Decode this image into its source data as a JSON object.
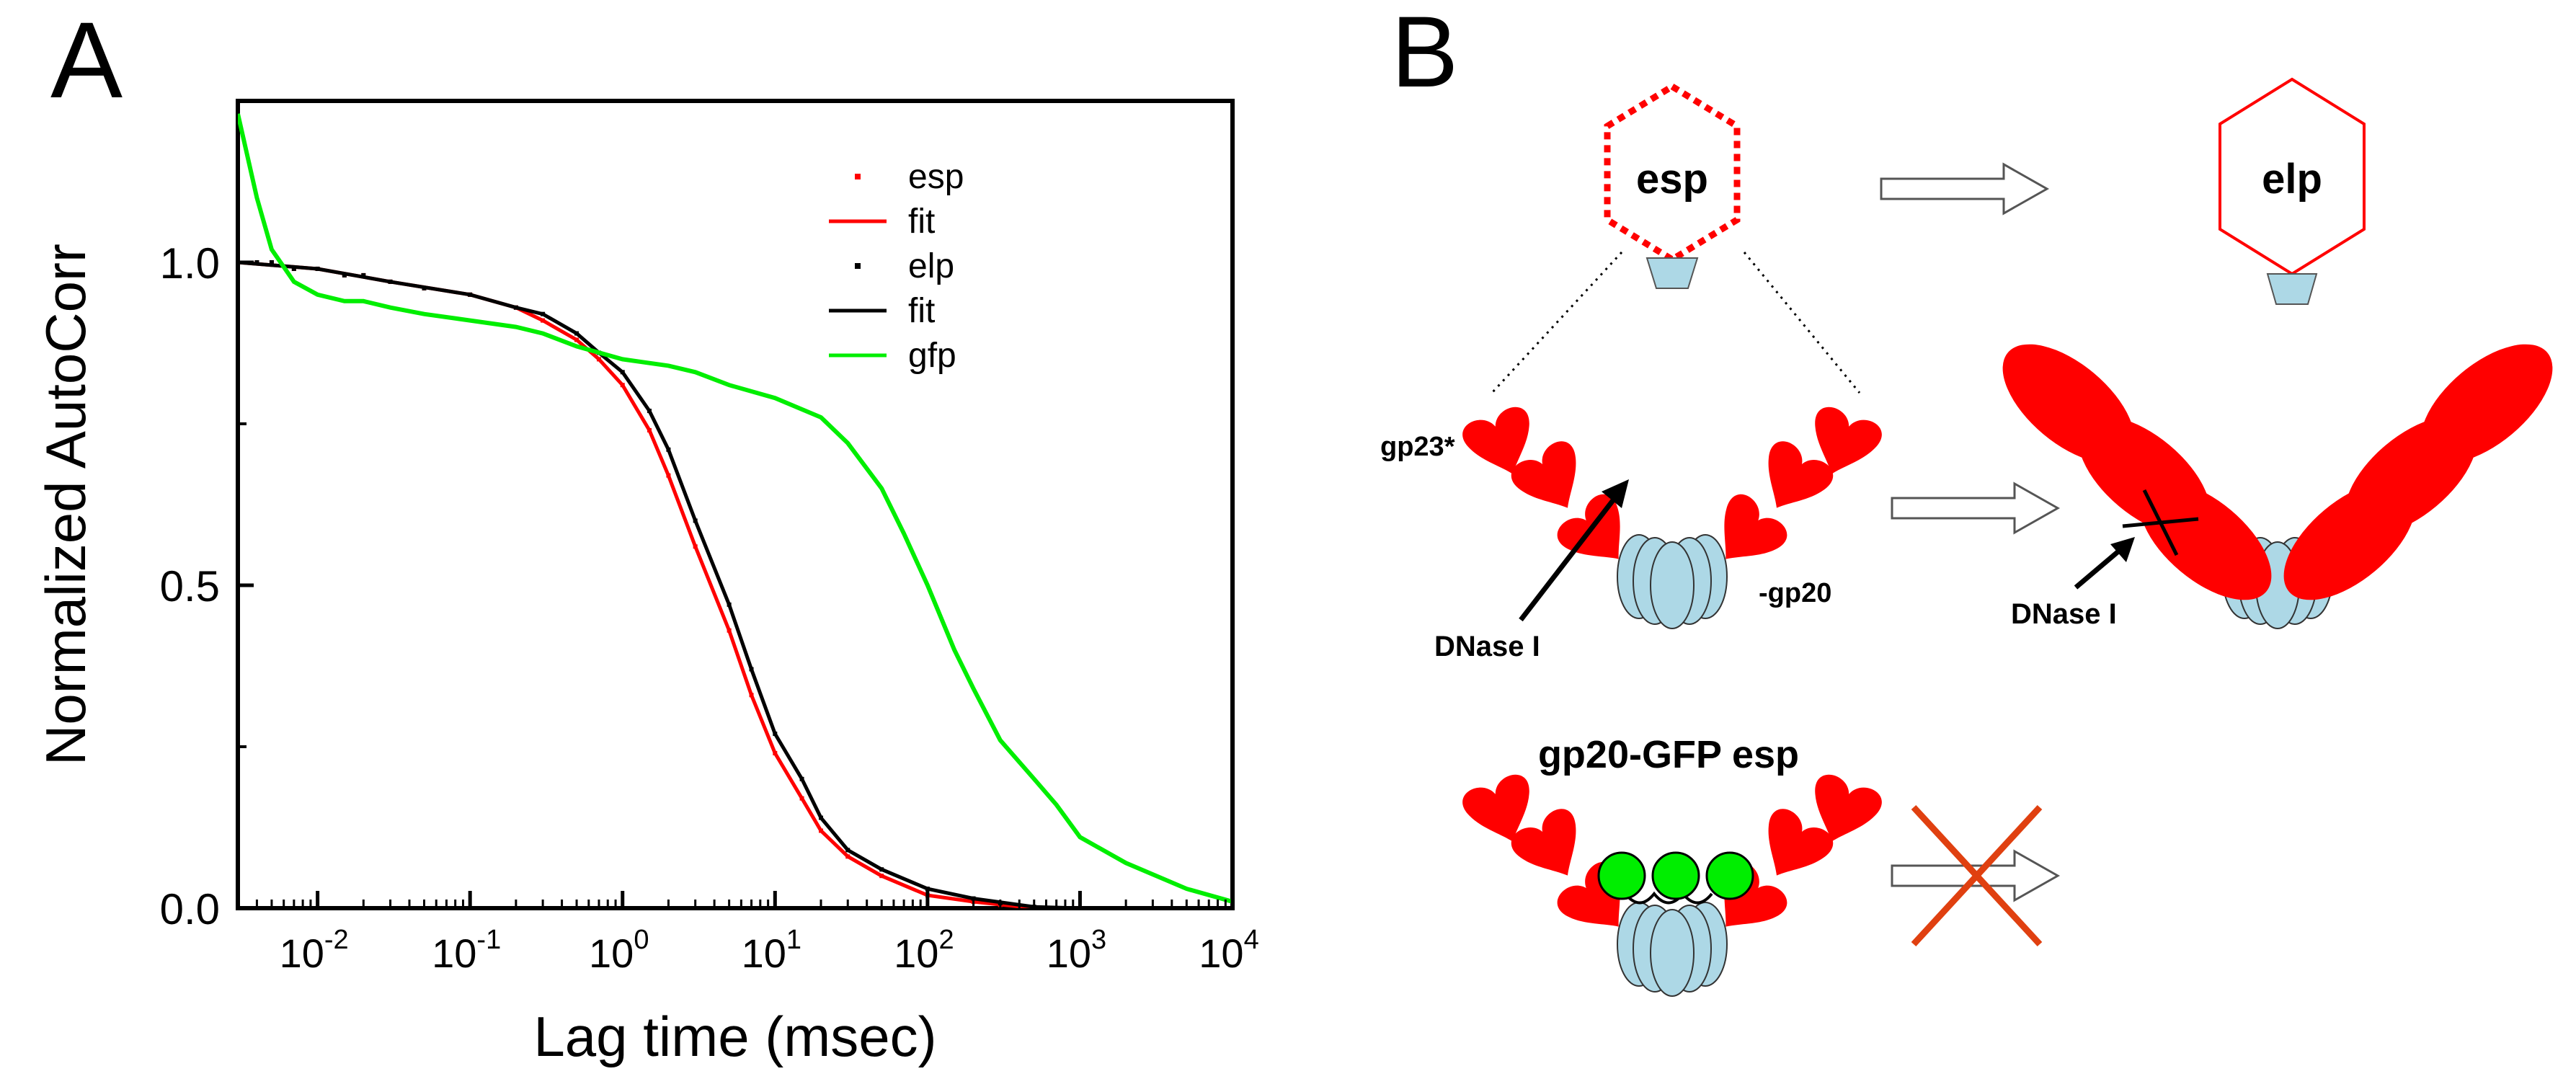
{
  "panel_a": {
    "letter": "A"
  },
  "panel_b": {
    "letter": "B",
    "esp_label": "esp",
    "elp_label": "elp",
    "gp23_label": "gp23*",
    "gp20_label": "-gp20",
    "dnase_left_label": "DNase I",
    "dnase_right_label": "DNase I",
    "gfp_esp_label": "gp20-GFP esp",
    "colors": {
      "capsid": "#ff0000",
      "portal": "#add8e6",
      "gfp": "#00ee00",
      "cross": "#e04010"
    },
    "icons": [
      "hexagon-capsid-icon",
      "portal-icon",
      "arrow-right-icon",
      "cross-icon",
      "heart-subunit-icon",
      "ellipse-subunit-icon"
    ]
  },
  "chart_data": {
    "type": "scatter",
    "xlabel": "Lag time (msec)",
    "ylabel": "Normalized AutoCorr",
    "xscale": "log",
    "xlim": [
      0.003,
      10000
    ],
    "ylim": [
      0.0,
      1.25
    ],
    "xticks": [
      0.01,
      0.1,
      1,
      10,
      100,
      1000,
      10000
    ],
    "xtick_labels": [
      {
        "base": "10",
        "exp": "-2"
      },
      {
        "base": "10",
        "exp": "-1"
      },
      {
        "base": "10",
        "exp": "0"
      },
      {
        "base": "10",
        "exp": "1"
      },
      {
        "base": "10",
        "exp": "2"
      },
      {
        "base": "10",
        "exp": "3"
      },
      {
        "base": "10",
        "exp": "4"
      }
    ],
    "yticks": [
      0.0,
      0.5,
      1.0
    ],
    "ytick_labels": [
      "0.0",
      "0.5",
      "1.0"
    ],
    "grid": false,
    "legend_position": "top-right",
    "series": [
      {
        "name": "esp",
        "style": "dots",
        "color": "#ff0000",
        "x": [
          0.003,
          0.004,
          0.005,
          0.007,
          0.01,
          0.015,
          0.02,
          0.03,
          0.05,
          0.1,
          0.2,
          0.3,
          0.5,
          0.7,
          1,
          1.5,
          2,
          3,
          5,
          7,
          10,
          15,
          20,
          30,
          50,
          100,
          200,
          300,
          500,
          1000
        ],
        "y": [
          1.0,
          1.0,
          1.0,
          0.99,
          0.99,
          0.98,
          0.98,
          0.97,
          0.96,
          0.95,
          0.93,
          0.91,
          0.88,
          0.85,
          0.81,
          0.74,
          0.67,
          0.56,
          0.43,
          0.33,
          0.24,
          0.17,
          0.12,
          0.08,
          0.05,
          0.02,
          0.01,
          0.005,
          0.0,
          0.0
        ]
      },
      {
        "name": "fit",
        "style": "line",
        "color": "#ff0000",
        "x": [
          0.003,
          0.01,
          0.03,
          0.1,
          0.2,
          0.3,
          0.5,
          0.7,
          1,
          1.5,
          2,
          3,
          5,
          7,
          10,
          15,
          20,
          30,
          50,
          100,
          200,
          500,
          1000
        ],
        "y": [
          1.0,
          0.99,
          0.97,
          0.95,
          0.93,
          0.91,
          0.88,
          0.85,
          0.81,
          0.74,
          0.67,
          0.56,
          0.43,
          0.33,
          0.24,
          0.17,
          0.12,
          0.08,
          0.05,
          0.02,
          0.01,
          0.0,
          0.0
        ]
      },
      {
        "name": "elp",
        "style": "dots",
        "color": "#000000",
        "x": [
          0.003,
          0.004,
          0.005,
          0.007,
          0.01,
          0.015,
          0.02,
          0.03,
          0.05,
          0.1,
          0.2,
          0.3,
          0.5,
          0.7,
          1,
          1.5,
          2,
          3,
          5,
          7,
          10,
          15,
          20,
          30,
          50,
          100,
          200,
          300,
          500,
          1000
        ],
        "y": [
          1.0,
          1.0,
          1.0,
          0.99,
          0.99,
          0.98,
          0.98,
          0.97,
          0.96,
          0.95,
          0.93,
          0.92,
          0.89,
          0.86,
          0.83,
          0.77,
          0.71,
          0.6,
          0.47,
          0.37,
          0.27,
          0.2,
          0.14,
          0.09,
          0.06,
          0.03,
          0.015,
          0.008,
          0.002,
          0.0
        ]
      },
      {
        "name": "fit",
        "style": "line",
        "color": "#000000",
        "x": [
          0.003,
          0.01,
          0.03,
          0.1,
          0.2,
          0.3,
          0.5,
          0.7,
          1,
          1.5,
          2,
          3,
          5,
          7,
          10,
          15,
          20,
          30,
          50,
          100,
          200,
          500,
          1000
        ],
        "y": [
          1.0,
          0.99,
          0.97,
          0.95,
          0.93,
          0.92,
          0.89,
          0.86,
          0.83,
          0.77,
          0.71,
          0.6,
          0.47,
          0.37,
          0.27,
          0.2,
          0.14,
          0.09,
          0.06,
          0.03,
          0.015,
          0.002,
          0.0
        ]
      },
      {
        "name": "gfp",
        "style": "line",
        "color": "#00ee00",
        "x": [
          0.003,
          0.004,
          0.005,
          0.007,
          0.01,
          0.015,
          0.02,
          0.03,
          0.05,
          0.1,
          0.2,
          0.3,
          0.5,
          1,
          2,
          3,
          5,
          10,
          20,
          30,
          50,
          70,
          100,
          150,
          200,
          300,
          500,
          700,
          1000,
          2000,
          5000,
          10000
        ],
        "y": [
          1.23,
          1.1,
          1.02,
          0.97,
          0.95,
          0.94,
          0.94,
          0.93,
          0.92,
          0.91,
          0.9,
          0.89,
          0.87,
          0.85,
          0.84,
          0.83,
          0.81,
          0.79,
          0.76,
          0.72,
          0.65,
          0.58,
          0.5,
          0.4,
          0.34,
          0.26,
          0.2,
          0.16,
          0.11,
          0.07,
          0.03,
          0.01
        ]
      }
    ]
  }
}
